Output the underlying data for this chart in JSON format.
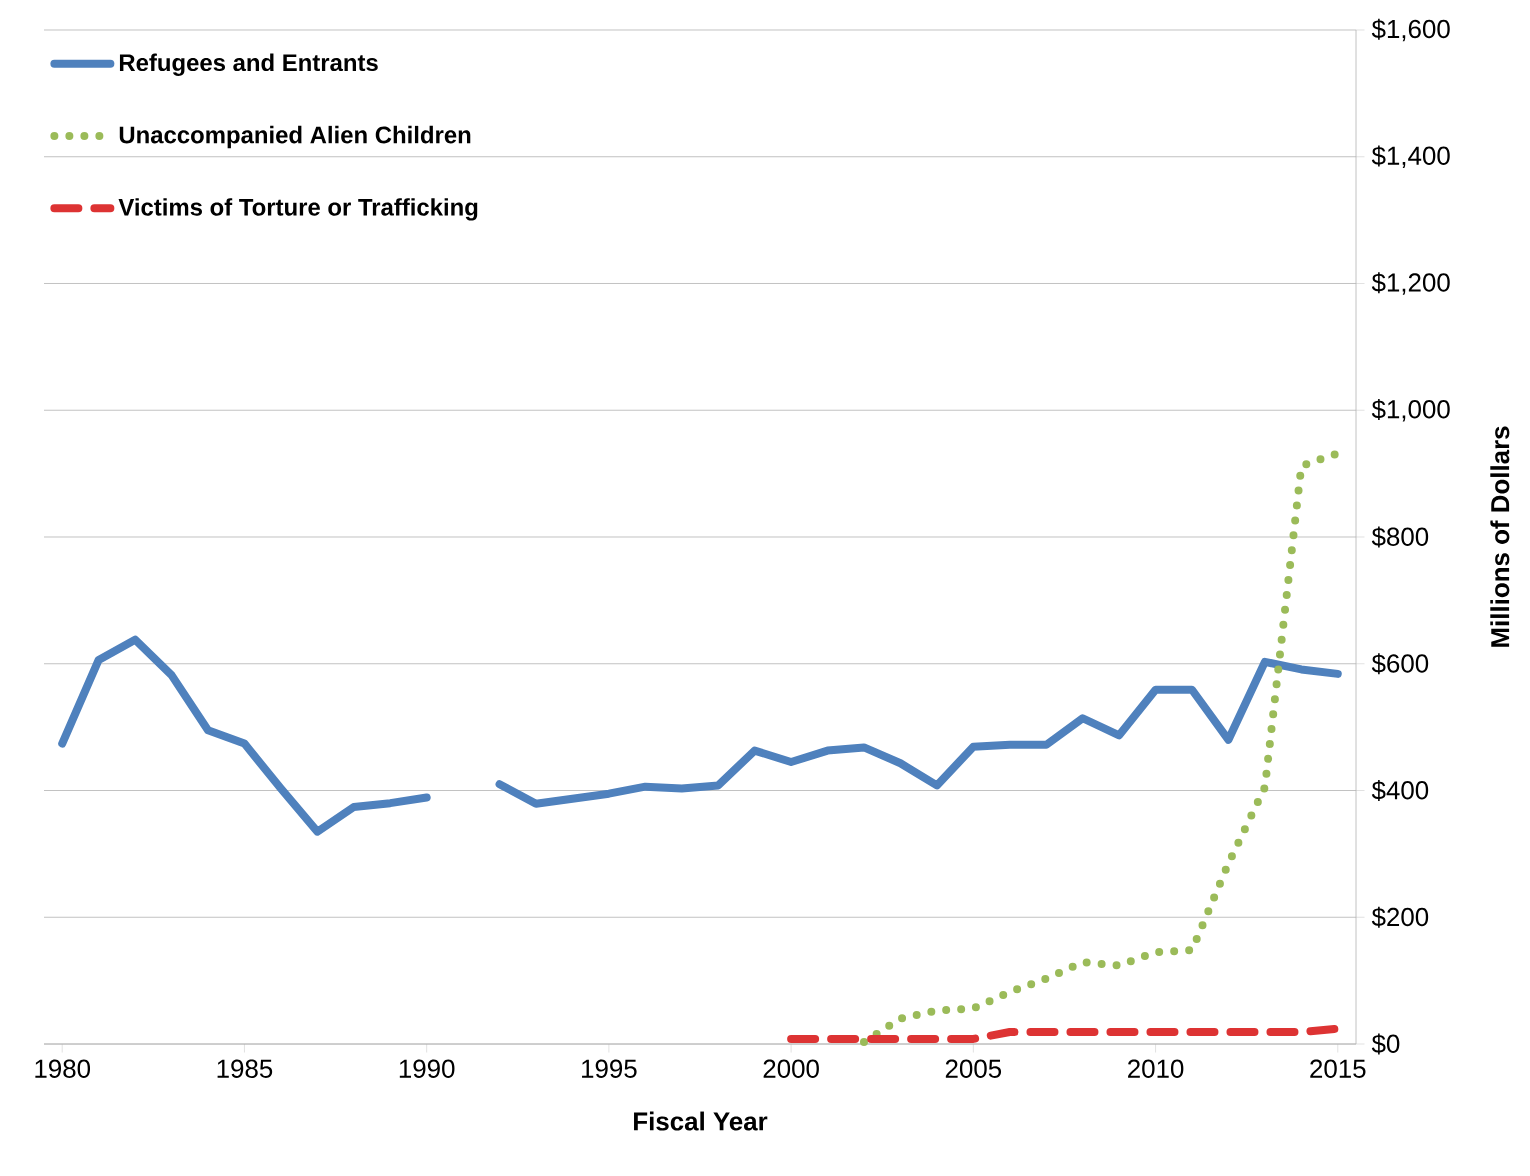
{
  "chart_data": {
    "type": "line",
    "xlabel": "Fiscal Year",
    "ylabel": "Millions of Dollars",
    "x": [
      1980,
      1981,
      1982,
      1983,
      1984,
      1985,
      1986,
      1987,
      1988,
      1989,
      1990,
      1991,
      1992,
      1993,
      1994,
      1995,
      1996,
      1997,
      1998,
      1999,
      2000,
      2001,
      2002,
      2003,
      2004,
      2005,
      2006,
      2007,
      2008,
      2009,
      2010,
      2011,
      2012,
      2013,
      2014,
      2015
    ],
    "xlim": [
      1979.5,
      2015.5
    ],
    "xticks": [
      1980,
      1985,
      1990,
      1995,
      2000,
      2005,
      2010,
      2015
    ],
    "ylim": [
      0,
      1600
    ],
    "yticks": [
      {
        "value": 0,
        "label": "$0"
      },
      {
        "value": 200,
        "label": "$200"
      },
      {
        "value": 400,
        "label": "$400"
      },
      {
        "value": 600,
        "label": "$600"
      },
      {
        "value": 800,
        "label": "$800"
      },
      {
        "value": 1000,
        "label": "$1,000"
      },
      {
        "value": 1200,
        "label": "$1,200"
      },
      {
        "value": 1400,
        "label": "$1,400"
      },
      {
        "value": 1600,
        "label": "$1,600"
      }
    ],
    "grid": "y",
    "legend": "top left",
    "marker": "none",
    "series": [
      {
        "name": "Refugees and Entrants",
        "color": "#4f81bd",
        "line_style": "solid",
        "values": [
          474,
          606,
          638,
          582,
          495,
          474,
          403,
          335,
          374,
          380,
          389,
          null,
          410,
          379,
          387,
          395,
          406,
          403,
          408,
          463,
          445,
          463,
          468,
          443,
          408,
          469,
          472,
          472,
          514,
          487,
          559,
          559,
          480,
          603,
          591,
          584
        ]
      },
      {
        "name": "Unaccompanied Alien Children",
        "color": "#9bbb59",
        "line_style": "dotted",
        "values": [
          null,
          null,
          null,
          null,
          null,
          null,
          null,
          null,
          null,
          null,
          null,
          null,
          null,
          null,
          null,
          null,
          null,
          null,
          null,
          null,
          null,
          null,
          3,
          40,
          53,
          56,
          82,
          103,
          129,
          124,
          145,
          148,
          285,
          405,
          912,
          932
        ]
      },
      {
        "name": "Victims of Torture or Trafficking",
        "color": "#dd3333",
        "line_style": "dashed",
        "values": [
          null,
          null,
          null,
          null,
          null,
          null,
          null,
          null,
          null,
          null,
          null,
          null,
          null,
          null,
          null,
          null,
          null,
          null,
          null,
          null,
          8,
          8,
          8,
          8,
          8,
          8,
          19,
          19,
          19,
          19,
          19,
          19,
          19,
          19,
          19,
          24
        ]
      }
    ]
  }
}
